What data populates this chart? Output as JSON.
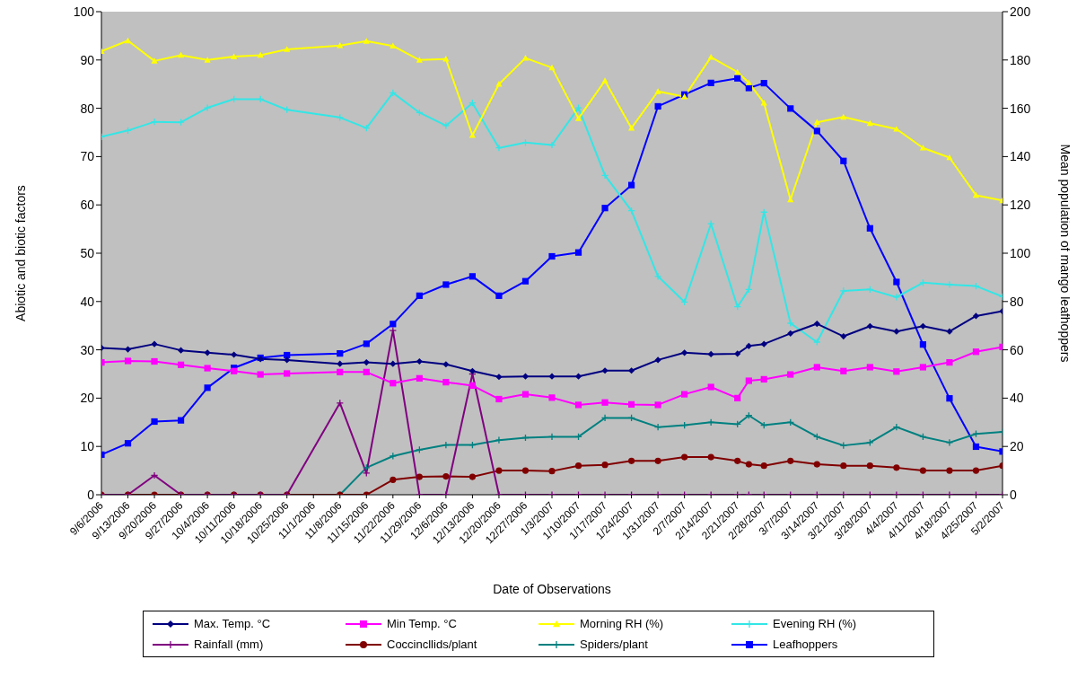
{
  "chart_data": {
    "type": "line",
    "xlabel": "Date of Observations",
    "ylabel": "Abiotic and biotic factors",
    "y2label": "Mean population of mango leafhoppers",
    "legend": "bottom",
    "x": [
      "2006-09-06",
      "2006-09-13",
      "2006-09-20",
      "2006-09-27",
      "2006-10-04",
      "2006-10-11",
      "2006-10-18",
      "2006-10-25",
      "2006-11-08",
      "2006-11-15",
      "2006-11-22",
      "2006-11-29",
      "2006-12-06",
      "2006-12-13",
      "2006-12-20",
      "2006-12-27",
      "2007-01-03",
      "2007-01-10",
      "2007-01-17",
      "2007-01-24",
      "2007-01-31",
      "2007-02-07",
      "2007-02-14",
      "2007-02-21",
      "2007-02-24",
      "2007-02-28",
      "2007-03-07",
      "2007-03-14",
      "2007-03-21",
      "2007-03-28",
      "2007-04-04",
      "2007-04-11",
      "2007-04-18",
      "2007-04-25",
      "2007-05-02"
    ],
    "xlim": [
      "2006-09-06",
      "2007-05-02"
    ],
    "xticks": [
      {
        "value": "2006-09-06",
        "label": "9/6/2006"
      },
      {
        "value": "2006-09-13",
        "label": "9/13/2006"
      },
      {
        "value": "2006-09-20",
        "label": "9/20/2006"
      },
      {
        "value": "2006-09-27",
        "label": "9/27/2006"
      },
      {
        "value": "2006-10-04",
        "label": "10/4/2006"
      },
      {
        "value": "2006-10-11",
        "label": "10/11/2006"
      },
      {
        "value": "2006-10-18",
        "label": "10/18/2006"
      },
      {
        "value": "2006-10-25",
        "label": "10/25/2006"
      },
      {
        "value": "2006-11-01",
        "label": "11/1/2006"
      },
      {
        "value": "2006-11-08",
        "label": "11/8/2006"
      },
      {
        "value": "2006-11-15",
        "label": "11/15/2006"
      },
      {
        "value": "2006-11-22",
        "label": "11/22/2006"
      },
      {
        "value": "2006-11-29",
        "label": "11/29/2006"
      },
      {
        "value": "2006-12-06",
        "label": "12/6/2006"
      },
      {
        "value": "2006-12-13",
        "label": "12/13/2006"
      },
      {
        "value": "2006-12-20",
        "label": "12/20/2006"
      },
      {
        "value": "2006-12-27",
        "label": "12/27/2006"
      },
      {
        "value": "2007-01-03",
        "label": "1/3/2007"
      },
      {
        "value": "2007-01-10",
        "label": "1/10/2007"
      },
      {
        "value": "2007-01-17",
        "label": "1/17/2007"
      },
      {
        "value": "2007-01-24",
        "label": "1/24/2007"
      },
      {
        "value": "2007-01-31",
        "label": "1/31/2007"
      },
      {
        "value": "2007-02-07",
        "label": "2/7/2007"
      },
      {
        "value": "2007-02-14",
        "label": "2/14/2007"
      },
      {
        "value": "2007-02-21",
        "label": "2/21/2007"
      },
      {
        "value": "2007-02-28",
        "label": "2/28/2007"
      },
      {
        "value": "2007-03-07",
        "label": "3/7/2007"
      },
      {
        "value": "2007-03-14",
        "label": "3/14/2007"
      },
      {
        "value": "2007-03-21",
        "label": "3/21/2007"
      },
      {
        "value": "2007-03-28",
        "label": "3/28/2007"
      },
      {
        "value": "2007-04-04",
        "label": "4/4/2007"
      },
      {
        "value": "2007-04-11",
        "label": "4/11/2007"
      },
      {
        "value": "2007-04-18",
        "label": "4/18/2007"
      },
      {
        "value": "2007-04-25",
        "label": "4/25/2007"
      },
      {
        "value": "2007-05-02",
        "label": "5/2/2007"
      }
    ],
    "ylim": [
      0,
      100
    ],
    "yticks": [
      0,
      10,
      20,
      30,
      40,
      50,
      60,
      70,
      80,
      90,
      100
    ],
    "y2lim": [
      0,
      200
    ],
    "y2ticks": [
      0,
      20,
      40,
      60,
      80,
      100,
      120,
      140,
      160,
      180,
      200
    ],
    "series": [
      {
        "name": "Max. Temp. °C",
        "color": "#000080",
        "marker": "diamond",
        "values": [
          30.4,
          30.1,
          31.2,
          29.9,
          29.4,
          29.0,
          28.1,
          27.9,
          27.1,
          27.4,
          27.1,
          27.6,
          27.0,
          25.6,
          24.4,
          24.5,
          24.5,
          24.5,
          25.7,
          25.7,
          27.9,
          29.4,
          29.1,
          29.2,
          30.8,
          31.2,
          33.4,
          35.4,
          32.8,
          34.9,
          33.8,
          34.9,
          33.8,
          37.0,
          38.0
        ]
      },
      {
        "name": "Min Temp. °C",
        "color": "#ff00ff",
        "marker": "square",
        "values": [
          27.4,
          27.7,
          27.6,
          26.9,
          26.2,
          25.6,
          24.9,
          25.1,
          25.4,
          25.4,
          23.1,
          24.1,
          23.3,
          22.6,
          19.8,
          20.8,
          20.1,
          18.6,
          19.1,
          18.7,
          18.6,
          20.8,
          22.3,
          20.0,
          23.6,
          23.9,
          24.9,
          26.4,
          25.6,
          26.4,
          25.5,
          26.4,
          27.4,
          29.6,
          30.6
        ]
      },
      {
        "name": "Morning RH (%)",
        "color": "#ffff00",
        "marker": "triangle",
        "values": [
          91.8,
          94.0,
          89.8,
          91.0,
          90.0,
          90.7,
          91.0,
          92.2,
          93.0,
          93.9,
          92.9,
          90.0,
          90.2,
          74.4,
          85.0,
          90.4,
          88.4,
          77.9,
          85.7,
          75.9,
          83.5,
          82.4,
          90.6,
          87.5,
          85.3,
          81.1,
          61.1,
          77.1,
          78.2,
          76.9,
          75.7,
          71.8,
          69.8,
          62.0,
          60.9
        ]
      },
      {
        "name": "Evening RH (%)",
        "color": "#33e6e6",
        "marker": "cross",
        "values": [
          74.1,
          75.4,
          77.2,
          77.1,
          80.1,
          81.9,
          81.9,
          79.7,
          78.1,
          75.9,
          83.2,
          79.1,
          76.4,
          81.1,
          71.8,
          72.9,
          72.4,
          80.1,
          66.1,
          58.8,
          45.2,
          39.9,
          56.1,
          38.9,
          42.5,
          58.5,
          35.5,
          31.6,
          42.2,
          42.5,
          40.9,
          43.9,
          43.5,
          43.2,
          41.0
        ]
      },
      {
        "name": "Rainfall (mm)",
        "color": "#800080",
        "marker": "cross",
        "values": [
          0,
          0,
          4,
          0,
          0,
          0,
          0,
          0,
          19,
          4.5,
          34,
          0,
          0,
          25,
          0,
          0,
          0,
          0,
          0,
          0,
          0,
          0,
          0,
          0,
          0,
          0,
          0,
          0,
          0,
          0,
          0,
          0,
          0,
          0,
          0
        ]
      },
      {
        "name": "Coccincllids/plant",
        "color": "#800000",
        "marker": "circle",
        "values": [
          0,
          0,
          0,
          0,
          0,
          0,
          0,
          0,
          0,
          0,
          3.1,
          3.7,
          3.8,
          3.7,
          5.0,
          5.0,
          4.9,
          6.0,
          6.2,
          7.0,
          7.0,
          7.8,
          7.8,
          7.0,
          6.3,
          6.0,
          7.0,
          6.3,
          6.0,
          6.0,
          5.6,
          5.0,
          5.0,
          5.0,
          6.0
        ]
      },
      {
        "name": "Spiders/plant",
        "color": "#008080",
        "marker": "cross",
        "values": [
          null,
          null,
          null,
          null,
          null,
          null,
          null,
          null,
          0,
          5.6,
          8.0,
          9.3,
          10.3,
          10.3,
          11.3,
          11.8,
          12.0,
          12.0,
          15.9,
          15.9,
          14.0,
          14.4,
          15.0,
          14.6,
          16.4,
          14.4,
          15.0,
          12.0,
          10.2,
          10.8,
          14.0,
          12.0,
          10.8,
          12.6,
          13.0
        ]
      },
      {
        "name": "Leafhoppers",
        "color": "#0000ff",
        "marker": "square",
        "axis": "y2",
        "values": [
          16.6,
          21.3,
          30.3,
          30.8,
          44.3,
          52.5,
          56.7,
          57.8,
          58.5,
          62.5,
          70.7,
          82.4,
          87.0,
          90.4,
          82.4,
          88.4,
          98.7,
          100.3,
          118.7,
          128.2,
          160.8,
          165.7,
          170.5,
          172.4,
          168.4,
          170.4,
          159.9,
          150.6,
          138.2,
          110.3,
          88.1,
          62.2,
          39.9,
          19.9,
          17.9
        ]
      }
    ]
  }
}
